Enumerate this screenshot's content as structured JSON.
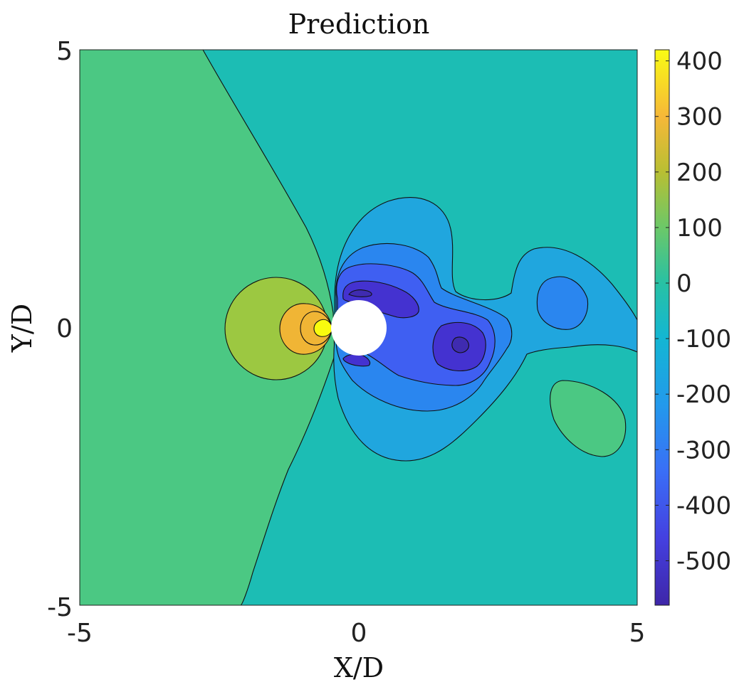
{
  "chart_data": {
    "type": "contour",
    "title": "Prediction",
    "xlabel": "X/D",
    "ylabel": "Y/D",
    "xlim": [
      -5,
      5
    ],
    "ylim": [
      -5,
      5
    ],
    "x_ticks": [
      "-5",
      "0",
      "5"
    ],
    "y_ticks": [
      "-5",
      "0",
      "5"
    ],
    "colorbar": {
      "range": [
        -580,
        420
      ],
      "ticks": [
        "400",
        "300",
        "200",
        "100",
        "0",
        "-100",
        "-200",
        "-300",
        "-400",
        "-500"
      ],
      "colormap": "parula"
    },
    "contour_levels": [
      -500,
      -400,
      -300,
      -200,
      -100,
      0,
      100,
      200,
      300
    ],
    "cylinder": {
      "x": 0,
      "y": 0,
      "diameter": 1
    },
    "colors": {
      "yellow": "#f9fb0e",
      "orange": "#f0b535",
      "yellow_green": "#9cc841",
      "green": "#4bc883",
      "teal": "#1cbdb4",
      "light_blue": "#20a6de",
      "mid_blue": "#2a86ef",
      "blue": "#3f5ff2",
      "violet_blue": "#4432d0",
      "deep_violet": "#3f2bb0"
    }
  }
}
